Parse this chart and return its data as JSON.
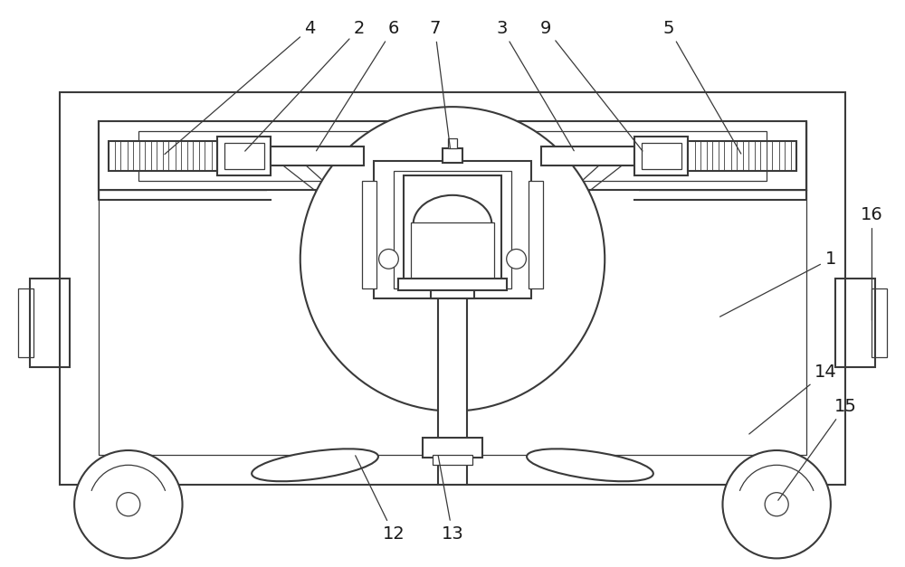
{
  "background_color": "#ffffff",
  "line_color": "#3a3a3a",
  "line_width": 1.5,
  "fig_width": 10.0,
  "fig_height": 6.27,
  "label_fontsize": 14,
  "label_color": "#1a1a1a"
}
